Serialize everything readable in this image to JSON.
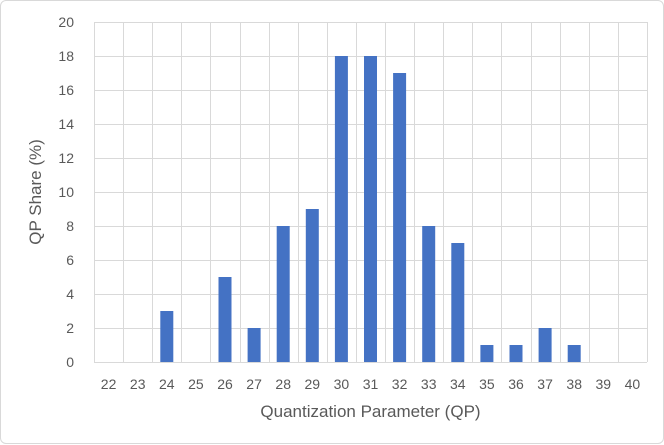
{
  "chart_data": {
    "type": "bar",
    "title": "",
    "xlabel": "Quantization Parameter (QP)",
    "ylabel": "QP Share (%)",
    "ylim": [
      0,
      20
    ],
    "yticks": [
      0,
      2,
      4,
      6,
      8,
      10,
      12,
      14,
      16,
      18,
      20
    ],
    "grid": true,
    "legend": "none",
    "bar_color": "#4472c4",
    "categories": [
      "22",
      "23",
      "24",
      "25",
      "26",
      "27",
      "28",
      "29",
      "30",
      "31",
      "32",
      "33",
      "34",
      "35",
      "36",
      "37",
      "38",
      "39",
      "40"
    ],
    "values": [
      0,
      0,
      3,
      0,
      5,
      2,
      8,
      9,
      18,
      18,
      17,
      8,
      7,
      1,
      1,
      2,
      1,
      0,
      0
    ]
  }
}
